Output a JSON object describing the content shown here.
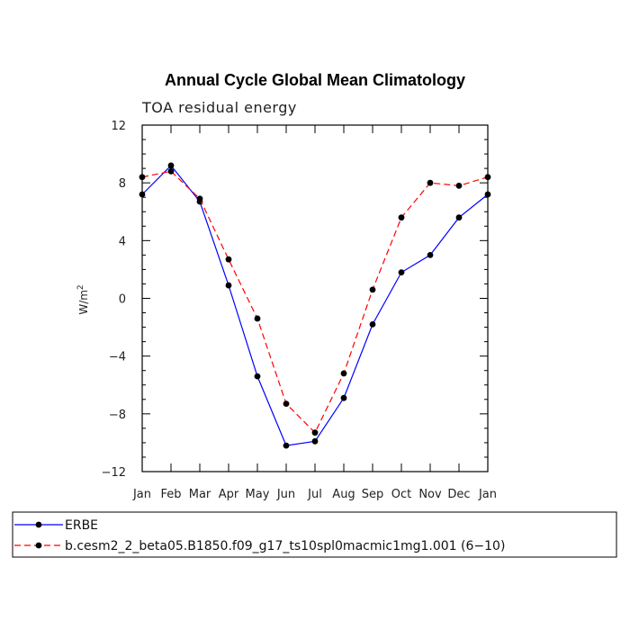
{
  "chart_data": {
    "type": "line",
    "title": "Annual Cycle Global Mean Climatology",
    "subtitle": "TOA residual energy",
    "xlabel": "",
    "ylabel": "W/m",
    "ylabel_sup": "2",
    "categories": [
      "Jan",
      "Feb",
      "Mar",
      "Apr",
      "May",
      "Jun",
      "Jul",
      "Aug",
      "Sep",
      "Oct",
      "Nov",
      "Dec",
      "Jan"
    ],
    "ylim": [
      -12,
      12
    ],
    "yticks": [
      -12,
      -8,
      -4,
      0,
      4,
      8,
      12
    ],
    "ytick_labels": [
      "−12",
      "−8",
      "−4",
      "0",
      "4",
      "8",
      "12"
    ],
    "series": [
      {
        "name": "ERBE",
        "color": "#0000ff",
        "style": "solid",
        "values": [
          7.2,
          9.2,
          6.7,
          0.9,
          -5.4,
          -10.2,
          -9.9,
          -6.9,
          -1.8,
          1.8,
          3.0,
          5.6,
          7.2
        ]
      },
      {
        "name": "b.cesm2_2_beta05.B1850.f09_g17_ts10spl0macmic1mg1.001 (6−10)",
        "color": "#ff0000",
        "style": "dashed",
        "values": [
          8.4,
          8.8,
          6.9,
          2.7,
          -1.4,
          -7.3,
          -9.3,
          -5.2,
          0.6,
          5.6,
          8.0,
          7.8,
          8.4
        ]
      }
    ]
  }
}
